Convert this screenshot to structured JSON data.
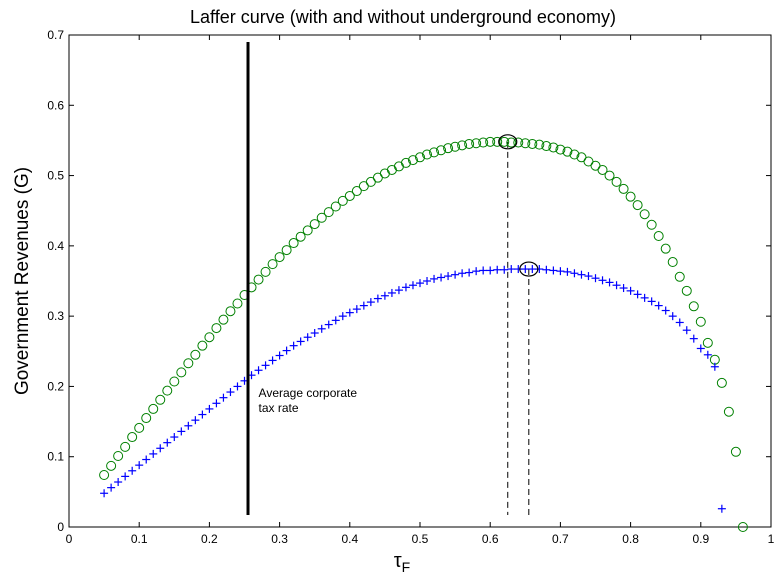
{
  "chart_data": {
    "type": "scatter",
    "title": "Laffer curve (with and without underground economy)",
    "xlabel": "τF",
    "xlabel_main": "τ",
    "xlabel_sub": "F",
    "ylabel": "Government Revenues (G)",
    "xlim": [
      0,
      1
    ],
    "ylim": [
      0,
      0.7
    ],
    "xticks": [
      "0",
      "0.1",
      "0.2",
      "0.3",
      "0.4",
      "0.5",
      "0.6",
      "0.7",
      "0.8",
      "0.9",
      "1"
    ],
    "yticks": [
      "0",
      "0.1",
      "0.2",
      "0.3",
      "0.4",
      "0.5",
      "0.6",
      "0.7"
    ],
    "grid": false,
    "series": [
      {
        "marker": "circle",
        "color": "#008000",
        "points": [
          [
            0.05,
            0.074
          ],
          [
            0.06,
            0.087
          ],
          [
            0.07,
            0.101
          ],
          [
            0.08,
            0.114
          ],
          [
            0.09,
            0.128
          ],
          [
            0.1,
            0.141
          ],
          [
            0.11,
            0.155
          ],
          [
            0.12,
            0.168
          ],
          [
            0.13,
            0.181
          ],
          [
            0.14,
            0.194
          ],
          [
            0.15,
            0.207
          ],
          [
            0.16,
            0.22
          ],
          [
            0.17,
            0.233
          ],
          [
            0.18,
            0.245
          ],
          [
            0.19,
            0.258
          ],
          [
            0.2,
            0.27
          ],
          [
            0.21,
            0.283
          ],
          [
            0.22,
            0.295
          ],
          [
            0.23,
            0.307
          ],
          [
            0.24,
            0.318
          ],
          [
            0.25,
            0.33
          ],
          [
            0.26,
            0.341
          ],
          [
            0.27,
            0.352
          ],
          [
            0.28,
            0.363
          ],
          [
            0.29,
            0.374
          ],
          [
            0.3,
            0.384
          ],
          [
            0.31,
            0.394
          ],
          [
            0.32,
            0.404
          ],
          [
            0.33,
            0.413
          ],
          [
            0.34,
            0.422
          ],
          [
            0.35,
            0.431
          ],
          [
            0.36,
            0.44
          ],
          [
            0.37,
            0.448
          ],
          [
            0.38,
            0.456
          ],
          [
            0.39,
            0.464
          ],
          [
            0.4,
            0.471
          ],
          [
            0.41,
            0.478
          ],
          [
            0.42,
            0.485
          ],
          [
            0.43,
            0.491
          ],
          [
            0.44,
            0.497
          ],
          [
            0.45,
            0.503
          ],
          [
            0.46,
            0.508
          ],
          [
            0.47,
            0.513
          ],
          [
            0.48,
            0.518
          ],
          [
            0.49,
            0.522
          ],
          [
            0.5,
            0.526
          ],
          [
            0.51,
            0.53
          ],
          [
            0.52,
            0.533
          ],
          [
            0.53,
            0.536
          ],
          [
            0.54,
            0.539
          ],
          [
            0.55,
            0.541
          ],
          [
            0.56,
            0.543
          ],
          [
            0.57,
            0.545
          ],
          [
            0.58,
            0.546
          ],
          [
            0.59,
            0.547
          ],
          [
            0.6,
            0.548
          ],
          [
            0.61,
            0.548
          ],
          [
            0.62,
            0.548
          ],
          [
            0.63,
            0.547
          ],
          [
            0.64,
            0.547
          ],
          [
            0.65,
            0.546
          ],
          [
            0.66,
            0.545
          ],
          [
            0.67,
            0.544
          ],
          [
            0.68,
            0.542
          ],
          [
            0.69,
            0.54
          ],
          [
            0.7,
            0.537
          ],
          [
            0.71,
            0.534
          ],
          [
            0.72,
            0.53
          ],
          [
            0.73,
            0.526
          ],
          [
            0.74,
            0.52
          ],
          [
            0.75,
            0.514
          ],
          [
            0.76,
            0.508
          ],
          [
            0.77,
            0.5
          ],
          [
            0.78,
            0.491
          ],
          [
            0.79,
            0.481
          ],
          [
            0.8,
            0.47
          ],
          [
            0.81,
            0.458
          ],
          [
            0.82,
            0.445
          ],
          [
            0.83,
            0.43
          ],
          [
            0.84,
            0.414
          ],
          [
            0.85,
            0.396
          ],
          [
            0.86,
            0.377
          ],
          [
            0.87,
            0.356
          ],
          [
            0.88,
            0.336
          ],
          [
            0.89,
            0.314
          ],
          [
            0.9,
            0.292
          ],
          [
            0.91,
            0.262
          ],
          [
            0.92,
            0.238
          ],
          [
            0.93,
            0.205
          ],
          [
            0.94,
            0.164
          ],
          [
            0.95,
            0.107
          ],
          [
            0.96,
            0.0
          ]
        ]
      },
      {
        "marker": "plus",
        "color": "#0000ff",
        "points": [
          [
            0.05,
            0.048
          ],
          [
            0.06,
            0.056
          ],
          [
            0.07,
            0.064
          ],
          [
            0.08,
            0.072
          ],
          [
            0.09,
            0.08
          ],
          [
            0.1,
            0.088
          ],
          [
            0.11,
            0.096
          ],
          [
            0.12,
            0.104
          ],
          [
            0.13,
            0.112
          ],
          [
            0.14,
            0.12
          ],
          [
            0.15,
            0.128
          ],
          [
            0.16,
            0.136
          ],
          [
            0.17,
            0.144
          ],
          [
            0.18,
            0.152
          ],
          [
            0.19,
            0.16
          ],
          [
            0.2,
            0.168
          ],
          [
            0.21,
            0.176
          ],
          [
            0.22,
            0.184
          ],
          [
            0.23,
            0.192
          ],
          [
            0.24,
            0.2
          ],
          [
            0.25,
            0.208
          ],
          [
            0.26,
            0.216
          ],
          [
            0.27,
            0.223
          ],
          [
            0.28,
            0.23
          ],
          [
            0.29,
            0.237
          ],
          [
            0.3,
            0.244
          ],
          [
            0.31,
            0.251
          ],
          [
            0.32,
            0.258
          ],
          [
            0.33,
            0.264
          ],
          [
            0.34,
            0.27
          ],
          [
            0.35,
            0.276
          ],
          [
            0.36,
            0.282
          ],
          [
            0.37,
            0.288
          ],
          [
            0.38,
            0.294
          ],
          [
            0.39,
            0.3
          ],
          [
            0.4,
            0.305
          ],
          [
            0.41,
            0.31
          ],
          [
            0.42,
            0.315
          ],
          [
            0.43,
            0.32
          ],
          [
            0.44,
            0.325
          ],
          [
            0.45,
            0.329
          ],
          [
            0.46,
            0.333
          ],
          [
            0.47,
            0.337
          ],
          [
            0.48,
            0.341
          ],
          [
            0.49,
            0.344
          ],
          [
            0.5,
            0.347
          ],
          [
            0.51,
            0.35
          ],
          [
            0.52,
            0.353
          ],
          [
            0.53,
            0.355
          ],
          [
            0.54,
            0.357
          ],
          [
            0.55,
            0.359
          ],
          [
            0.56,
            0.361
          ],
          [
            0.57,
            0.362
          ],
          [
            0.58,
            0.364
          ],
          [
            0.59,
            0.365
          ],
          [
            0.6,
            0.365
          ],
          [
            0.61,
            0.366
          ],
          [
            0.62,
            0.366
          ],
          [
            0.63,
            0.367
          ],
          [
            0.64,
            0.367
          ],
          [
            0.65,
            0.367
          ],
          [
            0.66,
            0.367
          ],
          [
            0.67,
            0.367
          ],
          [
            0.68,
            0.366
          ],
          [
            0.69,
            0.365
          ],
          [
            0.7,
            0.364
          ],
          [
            0.71,
            0.363
          ],
          [
            0.72,
            0.361
          ],
          [
            0.73,
            0.359
          ],
          [
            0.74,
            0.357
          ],
          [
            0.75,
            0.354
          ],
          [
            0.76,
            0.351
          ],
          [
            0.77,
            0.348
          ],
          [
            0.78,
            0.344
          ],
          [
            0.79,
            0.34
          ],
          [
            0.8,
            0.336
          ],
          [
            0.81,
            0.331
          ],
          [
            0.82,
            0.326
          ],
          [
            0.83,
            0.321
          ],
          [
            0.84,
            0.315
          ],
          [
            0.85,
            0.308
          ],
          [
            0.86,
            0.3
          ],
          [
            0.87,
            0.291
          ],
          [
            0.88,
            0.28
          ],
          [
            0.89,
            0.268
          ],
          [
            0.9,
            0.254
          ],
          [
            0.91,
            0.245
          ],
          [
            0.92,
            0.228
          ],
          [
            0.93,
            0.026
          ]
        ]
      }
    ],
    "peaks": [
      {
        "x": 0.625,
        "y": 0.548,
        "color": "#000000"
      },
      {
        "x": 0.655,
        "y": 0.367,
        "color": "#000000"
      }
    ],
    "vertical_line": {
      "x": 0.255,
      "y_from": 0.017,
      "y_to": 0.69
    },
    "annotation": {
      "lines": [
        "Average corporate",
        "tax rate"
      ],
      "x": 0.27,
      "y": 0.185
    }
  }
}
